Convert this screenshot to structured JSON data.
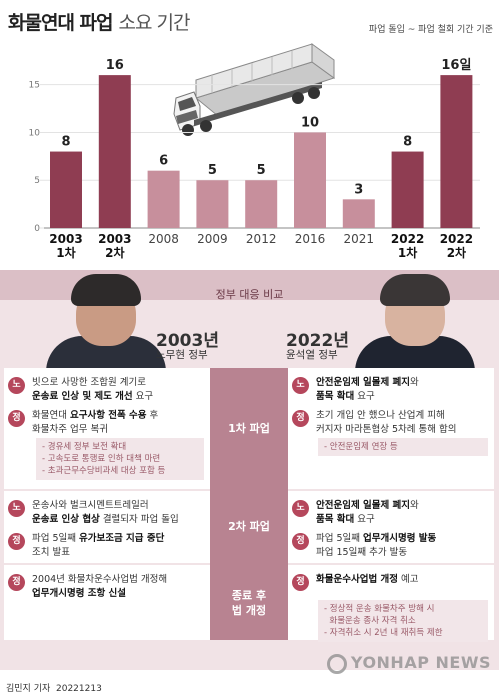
{
  "header": {
    "title": "화물연대 파업",
    "subtitle": "소요 기간",
    "note": "파업 돌입 ~ 파업 철회 기간 기준"
  },
  "colors": {
    "bar_dark": "#8f3d52",
    "bar_light": "#c78f9c",
    "accent": "#b5475c",
    "panel_bg": "#f1e3e6",
    "center_col": "#b88391"
  },
  "icons": [
    "truck-icon"
  ],
  "chart_data": {
    "type": "bar",
    "categories": [
      [
        "2003",
        "1차"
      ],
      [
        "2003",
        "2차"
      ],
      [
        "2008"
      ],
      [
        "2009"
      ],
      [
        "2012"
      ],
      [
        "2016"
      ],
      [
        "2021"
      ],
      [
        "2022",
        "1차"
      ],
      [
        "2022",
        "2차"
      ]
    ],
    "values": [
      8,
      16,
      6,
      5,
      5,
      10,
      3,
      8,
      16
    ],
    "value_labels": [
      "8",
      "16",
      "6",
      "5",
      "5",
      "10",
      "3",
      "8",
      "16일"
    ],
    "highlighted": [
      true,
      true,
      false,
      false,
      false,
      false,
      false,
      true,
      true
    ],
    "y_ticks": [
      "0",
      "5",
      "10",
      "15"
    ],
    "ylim": [
      0,
      18
    ]
  },
  "comparison": {
    "title": "정부 대응 비교",
    "left": {
      "year": "2003년",
      "gov": "노무현 정부"
    },
    "right": {
      "year": "2022년",
      "gov": "윤석열 정부"
    },
    "stages": [
      {
        "label": "1차 파업",
        "left": [
          {
            "badge": "노",
            "lines": [
              [
                {
                  "t": "빗으로 사망한 조합원 계기로"
                }
              ],
              [
                {
                  "t": "운송료 인상 및 제도 개선",
                  "b": true
                },
                {
                  "t": " 요구"
                }
              ]
            ]
          },
          {
            "badge": "정",
            "lines": [
              [
                {
                  "t": "화물연대 "
                },
                {
                  "t": "요구사항 전폭 수용",
                  "b": true
                },
                {
                  "t": " 후"
                }
              ],
              [
                {
                  "t": "화물차주 업무 복귀"
                }
              ]
            ]
          }
        ],
        "left_sub": [
          "- 경유세 정부 보전 확대",
          "- 고속도로 통행료 인하 대책 마련",
          "- 초과근무수당비과세 대상 포함 등"
        ],
        "right": [
          {
            "badge": "노",
            "lines": [
              [
                {
                  "t": "안전운임제 일몰제 폐지",
                  "b": true
                },
                {
                  "t": "와"
                }
              ],
              [
                {
                  "t": "품목 확대",
                  "b": true
                },
                {
                  "t": " 요구"
                }
              ]
            ]
          },
          {
            "badge": "정",
            "lines": [
              [
                {
                  "t": "초기 개입 안 했으나 산업계 피해"
                }
              ],
              [
                {
                  "t": "커지자 마라톤협상 5차례 통해 합의"
                }
              ]
            ]
          }
        ],
        "right_sub": [
          "- 안전운임제 연장 등"
        ]
      },
      {
        "label": "2차 파업",
        "left": [
          {
            "badge": "노",
            "lines": [
              [
                {
                  "t": "운송사와 벌크시멘트트레일러"
                }
              ],
              [
                {
                  "t": "운송료 인상 협상",
                  "b": true
                },
                {
                  "t": " 결렬되자 파업 돌입"
                }
              ]
            ]
          },
          {
            "badge": "정",
            "lines": [
              [
                {
                  "t": "파업 5일째 "
                },
                {
                  "t": "유가보조금 지급 중단",
                  "b": true
                }
              ],
              [
                {
                  "t": "조치 발표"
                }
              ]
            ]
          }
        ],
        "right": [
          {
            "badge": "노",
            "lines": [
              [
                {
                  "t": "안전운임제 일몰제 폐지",
                  "b": true
                },
                {
                  "t": "와"
                }
              ],
              [
                {
                  "t": "품목 확대",
                  "b": true
                },
                {
                  "t": " 요구"
                }
              ]
            ]
          },
          {
            "badge": "정",
            "lines": [
              [
                {
                  "t": "파업 5일째 "
                },
                {
                  "t": "업무개시명령 발동",
                  "b": true
                }
              ],
              [
                {
                  "t": "파업 15일째 추가 발동"
                }
              ]
            ]
          }
        ]
      },
      {
        "label": "종료 후 법 개정",
        "label_lines": [
          "종료 후",
          "법 개정"
        ],
        "left": [
          {
            "badge": "정",
            "lines": [
              [
                {
                  "t": "2004년 화물차운수사업법 개정해"
                }
              ],
              [
                {
                  "t": "업무개시명령 조항 신설",
                  "b": true
                }
              ]
            ]
          }
        ],
        "right": [
          {
            "badge": "정",
            "lines": [
              [
                {
                  "t": "화물운수사업법 개정",
                  "b": true
                },
                {
                  "t": " 예고"
                }
              ]
            ]
          }
        ],
        "right_sub": [
          "- 정상적 운송 화물차주 방해 시",
          "  화물운송 종사 자격 취소",
          "- 자격취소 시 2년 내 재취득 제한"
        ]
      }
    ]
  },
  "footer": {
    "byline": "김민지 기자",
    "date": "20221213",
    "logo": "YONHAP NEWS"
  }
}
